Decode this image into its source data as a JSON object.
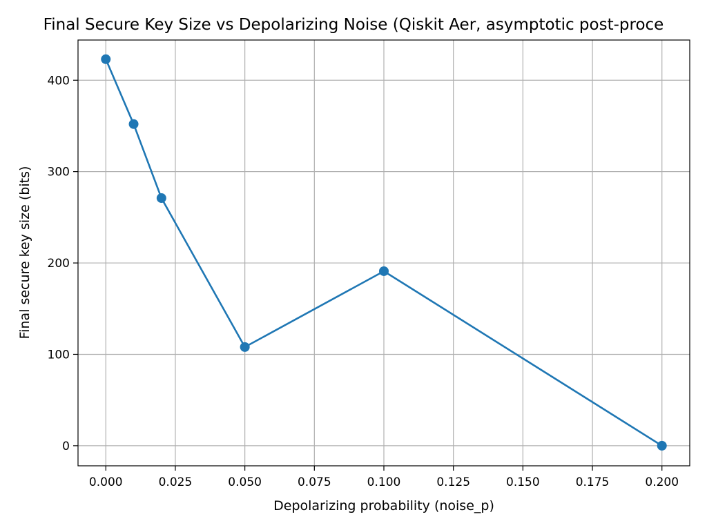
{
  "chart_data": {
    "type": "line",
    "title": "Final Secure Key Size vs Depolarizing Noise (Qiskit Aer, asymptotic post-proce",
    "xlabel": "Depolarizing probability (noise_p)",
    "ylabel": "Final secure key size (bits)",
    "xlim": [
      -0.01,
      0.21
    ],
    "ylim": [
      -22,
      444
    ],
    "x_ticks": [
      0.0,
      0.025,
      0.05,
      0.075,
      0.1,
      0.125,
      0.15,
      0.175,
      0.2
    ],
    "x_tick_labels": [
      "0.000",
      "0.025",
      "0.050",
      "0.075",
      "0.100",
      "0.125",
      "0.150",
      "0.175",
      "0.200"
    ],
    "y_ticks": [
      0,
      100,
      200,
      300,
      400
    ],
    "y_tick_labels": [
      "0",
      "100",
      "200",
      "300",
      "400"
    ],
    "grid": true,
    "legend": "none",
    "color": "#1f77b4",
    "marker": "circle",
    "series": [
      {
        "x": [
          0.0,
          0.01,
          0.02,
          0.05,
          0.1,
          0.2
        ],
        "y": [
          423,
          352,
          271,
          108,
          191,
          0
        ]
      }
    ]
  }
}
